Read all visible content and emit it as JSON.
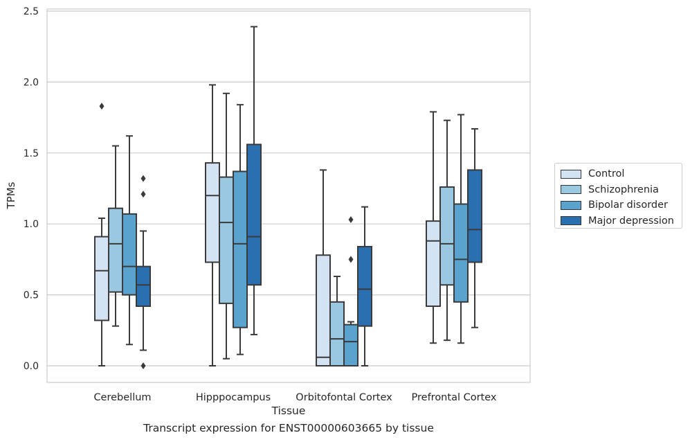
{
  "caption": "Transcript expression for ENST00000603665 by tissue",
  "chart_data": {
    "type": "box",
    "title": "",
    "xlabel": "Tissue",
    "ylabel": "TPMs",
    "ylim": [
      -0.12,
      2.52
    ],
    "yticks": [
      "0.0",
      "0.5",
      "1.0",
      "1.5",
      "2.0",
      "2.5"
    ],
    "grid": "horizontal",
    "legend_position": "right",
    "categories": [
      "Cerebellum",
      "Hipppocampus",
      "Orbitofontal Cortex",
      "Prefrontal Cortex"
    ],
    "series": [
      {
        "name": "Control",
        "color": "#d3e3f3",
        "boxes": [
          {
            "whislo": 0.0,
            "q1": 0.32,
            "med": 0.67,
            "q3": 0.91,
            "whishi": 1.04,
            "fliers": [
              1.83
            ]
          },
          {
            "whislo": 0.0,
            "q1": 0.73,
            "med": 1.2,
            "q3": 1.43,
            "whishi": 1.98,
            "fliers": []
          },
          {
            "whislo": 0.0,
            "q1": 0.0,
            "med": 0.06,
            "q3": 0.78,
            "whishi": 1.38,
            "fliers": []
          },
          {
            "whislo": 0.16,
            "q1": 0.42,
            "med": 0.88,
            "q3": 1.02,
            "whishi": 1.79,
            "fliers": []
          }
        ]
      },
      {
        "name": "Schizophrenia",
        "color": "#9ac8e0",
        "boxes": [
          {
            "whislo": 0.28,
            "q1": 0.52,
            "med": 0.86,
            "q3": 1.11,
            "whishi": 1.55,
            "fliers": []
          },
          {
            "whislo": 0.05,
            "q1": 0.44,
            "med": 1.01,
            "q3": 1.33,
            "whishi": 1.92,
            "fliers": []
          },
          {
            "whislo": 0.0,
            "q1": 0.0,
            "med": 0.19,
            "q3": 0.45,
            "whishi": 0.63,
            "fliers": []
          },
          {
            "whislo": 0.18,
            "q1": 0.57,
            "med": 0.86,
            "q3": 1.26,
            "whishi": 1.73,
            "fliers": []
          }
        ]
      },
      {
        "name": "Bipolar disorder",
        "color": "#5ba3cf",
        "boxes": [
          {
            "whislo": 0.15,
            "q1": 0.5,
            "med": 0.7,
            "q3": 1.07,
            "whishi": 1.62,
            "fliers": []
          },
          {
            "whislo": 0.08,
            "q1": 0.27,
            "med": 0.86,
            "q3": 1.37,
            "whishi": 1.84,
            "fliers": []
          },
          {
            "whislo": 0.0,
            "q1": 0.0,
            "med": 0.17,
            "q3": 0.29,
            "whishi": 0.31,
            "fliers": [
              0.75,
              1.03
            ]
          },
          {
            "whislo": 0.16,
            "q1": 0.45,
            "med": 0.75,
            "q3": 1.14,
            "whishi": 1.77,
            "fliers": []
          }
        ]
      },
      {
        "name": "Major depression",
        "color": "#2a6fb0",
        "boxes": [
          {
            "whislo": 0.11,
            "q1": 0.42,
            "med": 0.57,
            "q3": 0.7,
            "whishi": 0.95,
            "fliers": [
              0.0,
              1.21,
              1.32
            ]
          },
          {
            "whislo": 0.22,
            "q1": 0.57,
            "med": 0.91,
            "q3": 1.56,
            "whishi": 2.39,
            "fliers": []
          },
          {
            "whislo": 0.0,
            "q1": 0.28,
            "med": 0.54,
            "q3": 0.84,
            "whishi": 1.12,
            "fliers": []
          },
          {
            "whislo": 0.27,
            "q1": 0.73,
            "med": 0.96,
            "q3": 1.38,
            "whishi": 1.67,
            "fliers": []
          }
        ]
      }
    ]
  }
}
